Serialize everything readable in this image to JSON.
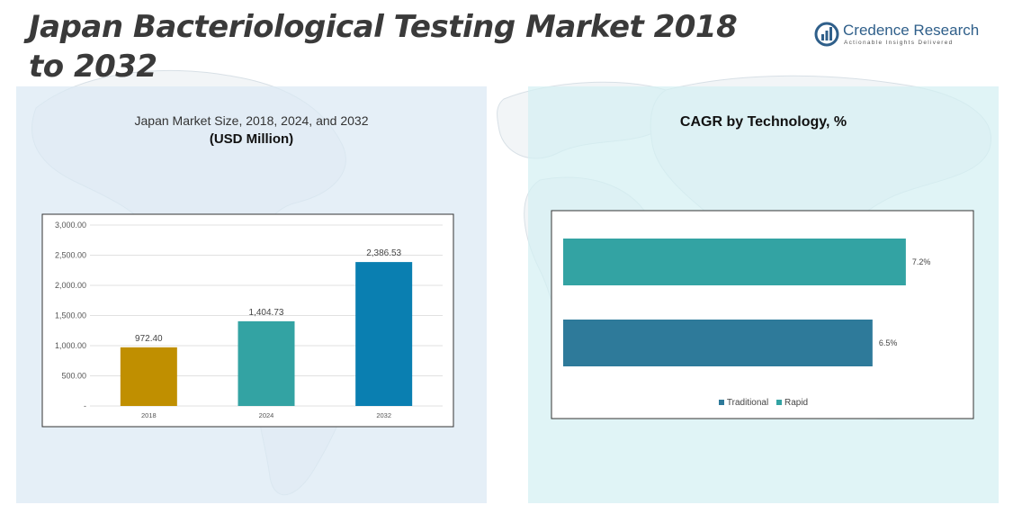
{
  "header": {
    "title": "Japan Bacteriological Testing Market 2018 to 2032"
  },
  "logo": {
    "name": "Credence Research",
    "tagline": "Actionable Insights Delivered",
    "brand_color": "#2f5f8a"
  },
  "chart_data": [
    {
      "type": "bar",
      "title": "Japan Market Size, 2018, 2024, and 2032",
      "subtitle": "(USD Million)",
      "categories": [
        "2018",
        "2024",
        "2032"
      ],
      "values": [
        972.4,
        1404.73,
        2386.53
      ],
      "value_labels": [
        "972.40",
        "1,404.73",
        "2,386.53"
      ],
      "colors": [
        "#c08f00",
        "#33a3a3",
        "#0a7fb1"
      ],
      "ylim": [
        0,
        3000
      ],
      "yticks": [
        0,
        500,
        1000,
        1500,
        2000,
        2500,
        3000
      ],
      "ytick_labels": [
        "-",
        "500.00",
        "1,000.00",
        "1,500.00",
        "2,000.00",
        "2,500.00",
        "3,000.00"
      ],
      "grid": true
    },
    {
      "type": "bar",
      "orientation": "horizontal",
      "title": "CAGR by Technology, %",
      "series": [
        {
          "name": "Rapid",
          "value": 7.2,
          "label": "7.2%",
          "color": "#33a3a3"
        },
        {
          "name": "Traditional",
          "value": 6.5,
          "label": "6.5%",
          "color": "#2e7a9a"
        }
      ],
      "legend": [
        "Traditional",
        "Rapid"
      ],
      "legend_position": "bottom"
    }
  ]
}
